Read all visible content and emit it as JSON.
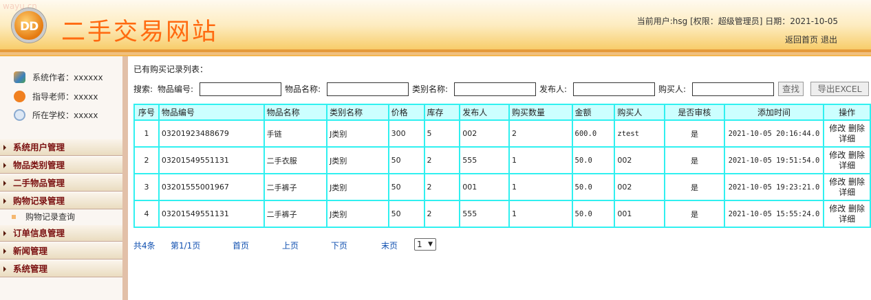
{
  "header": {
    "watermark": "wayu.cn",
    "logo_text": "DD",
    "title": "二手交易网站",
    "user_info": "当前用户:hsg [权限：超级管理员] 日期：2021-10-05",
    "home_link": "返回首页",
    "logout_link": "退出"
  },
  "sidebar": {
    "info": [
      {
        "label": "系统作者：xxxxxx",
        "icon": "users-icon"
      },
      {
        "label": "指导老师：xxxxx",
        "icon": "telephone-icon"
      },
      {
        "label": "所在学校：xxxxx",
        "icon": "clock-icon"
      }
    ],
    "menus": [
      "系统用户管理",
      "物品类别管理",
      "二手物品管理",
      "购物记录管理",
      "订单信息管理",
      "新闻管理",
      "系统管理"
    ],
    "submenu": "购物记录查询"
  },
  "main": {
    "list_title": "已有购买记录列表：",
    "search": {
      "label": "搜索:",
      "fields": [
        {
          "label": "物品编号:",
          "value": ""
        },
        {
          "label": "物品名称:",
          "value": ""
        },
        {
          "label": "类别名称:",
          "value": ""
        },
        {
          "label": "发布人:",
          "value": ""
        },
        {
          "label": "购买人:",
          "value": ""
        }
      ],
      "search_button": "查找",
      "export_button": "导出EXCEL"
    },
    "table": {
      "columns": [
        "序号",
        "物品编号",
        "物品名称",
        "类别名称",
        "价格",
        "库存",
        "发布人",
        "购买数量",
        "金额",
        "购买人",
        "是否审核",
        "添加时间",
        "操作"
      ],
      "rows": [
        [
          "1",
          "03201923488679",
          "手链",
          "J类别",
          "300",
          "5",
          "002",
          "2",
          "600.0",
          "ztest",
          "是",
          "2021-10-05 20:16:44.0"
        ],
        [
          "2",
          "03201549551131",
          "二手衣服",
          "J类别",
          "50",
          "2",
          "555",
          "1",
          "50.0",
          "002",
          "是",
          "2021-10-05 19:51:54.0"
        ],
        [
          "3",
          "03201555001967",
          "二手裤子",
          "J类别",
          "50",
          "2",
          "001",
          "1",
          "50.0",
          "002",
          "是",
          "2021-10-05 19:23:21.0"
        ],
        [
          "4",
          "03201549551131",
          "二手裤子",
          "J类别",
          "50",
          "2",
          "555",
          "1",
          "50.0",
          "001",
          "是",
          "2021-10-05 15:55:24.0"
        ]
      ],
      "actions": [
        "修改",
        "删除",
        "详细"
      ]
    },
    "pagination": {
      "total": "共4条",
      "page": "第1/1页",
      "first": "首页",
      "prev": "上页",
      "next": "下页",
      "last": "末页",
      "selected": "1"
    }
  }
}
